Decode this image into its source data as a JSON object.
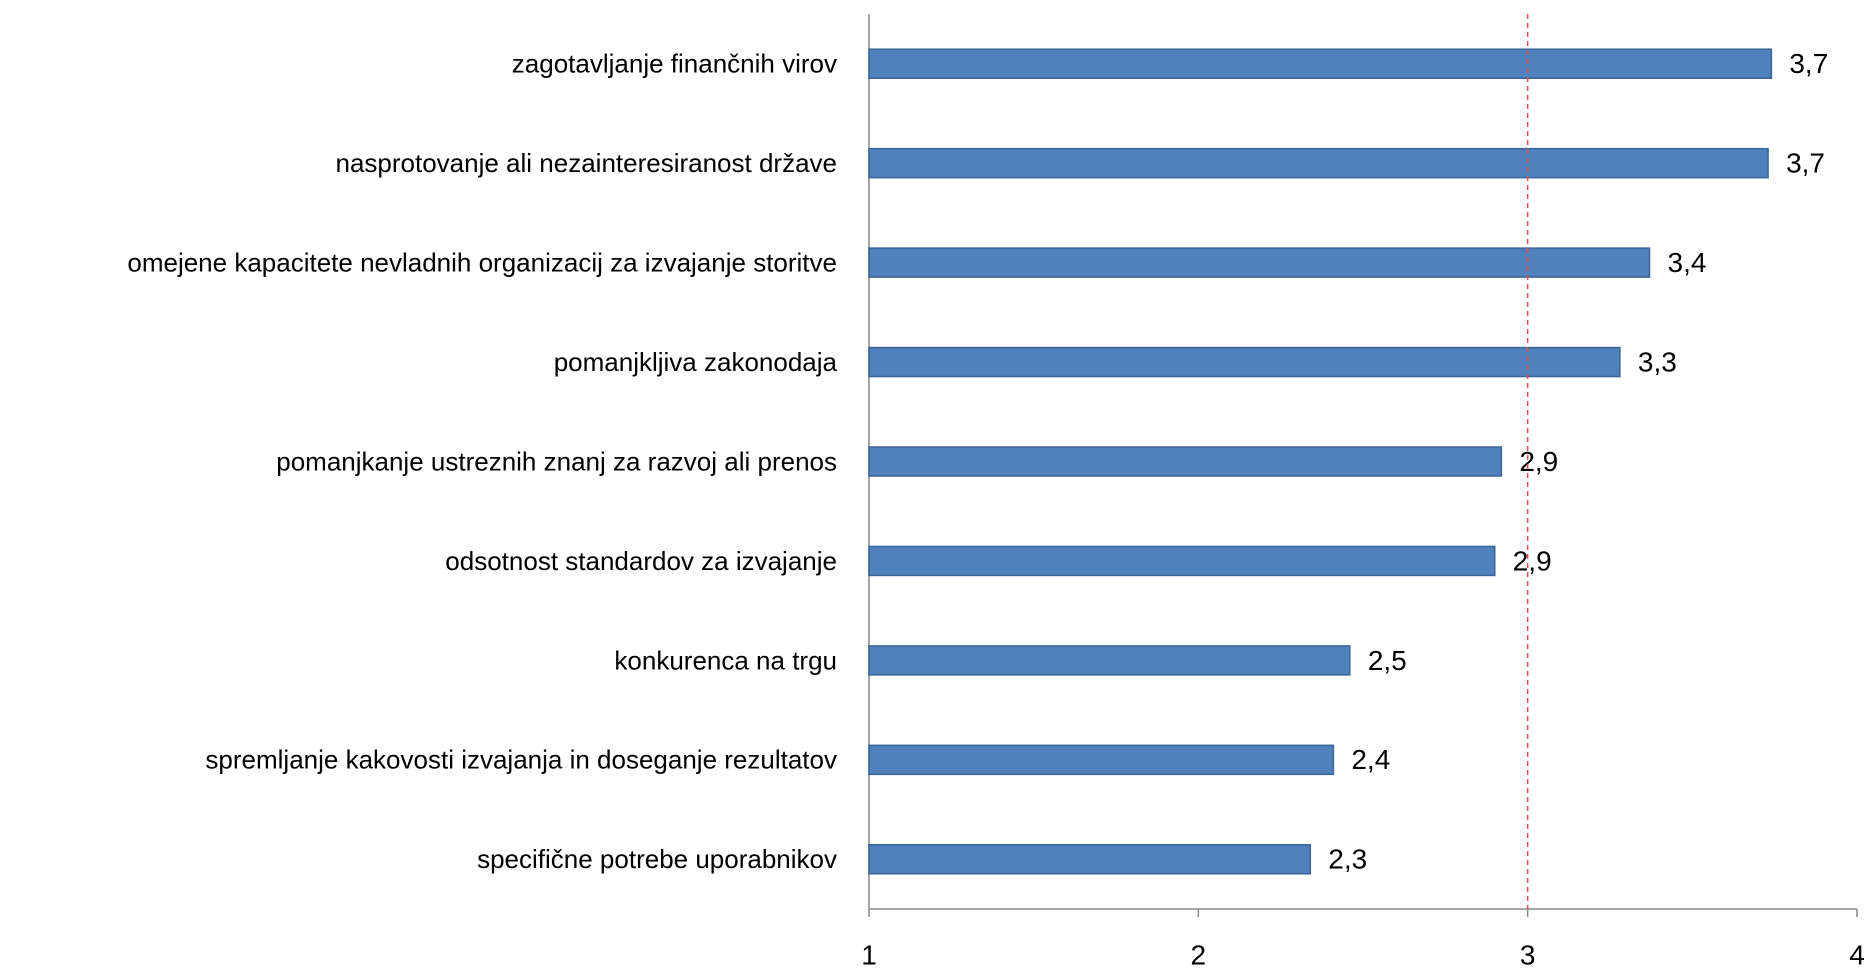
{
  "chart_data": {
    "type": "hbar",
    "categories": [
      "zagotavljanje finančnih virov",
      "nasprotovanje ali nezainteresiranost države",
      "omejene kapacitete nevladnih organizacij za izvajanje storitve",
      "pomanjkljiva zakonodaja",
      "pomanjkanje ustreznih znanj za razvoj ali prenos",
      "odsotnost standardov za izvajanje",
      "konkurenca na trgu",
      "spremljanje kakovosti izvajanja in doseganje rezultatov",
      "specifične potrebe uporabnikov"
    ],
    "values": [
      3.74,
      3.73,
      3.37,
      3.28,
      2.92,
      2.9,
      2.46,
      2.41,
      2.34
    ],
    "value_labels": [
      "3,7",
      "3,7",
      "3,4",
      "3,3",
      "2,9",
      "2,9",
      "2,5",
      "2,4",
      "2,3"
    ],
    "color": "#4f81bd",
    "xlim": [
      1,
      4
    ],
    "xticks": [
      1,
      2,
      3,
      4
    ],
    "reference_line": {
      "value": 3,
      "color": "#e05050"
    }
  }
}
